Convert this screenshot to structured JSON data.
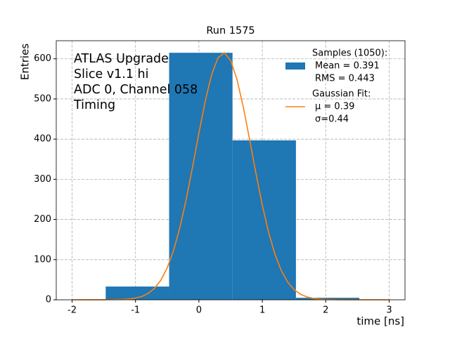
{
  "chart_data": {
    "type": "histogram",
    "title": "Run 1575",
    "xlabel": "time [ns]",
    "ylabel": "Entries",
    "annotation": [
      "ATLAS Upgrade",
      "Slice v1.1 hi",
      "ADC 0, Channel 058",
      "Timing"
    ],
    "xlim": [
      -2.25,
      3.25
    ],
    "ylim": [
      0,
      645
    ],
    "xticks": [
      -2,
      -1,
      0,
      1,
      2,
      3
    ],
    "yticks": [
      0,
      100,
      200,
      300,
      400,
      500,
      600
    ],
    "grid": true,
    "legend": "upper right",
    "series": [
      {
        "type": "histogram",
        "name": "Samples (1050):",
        "legend_lines": [
          "Mean = 0.391",
          "RMS = 0.443"
        ],
        "color": "#1f77b4",
        "bins": [
          -1.47,
          -0.47,
          0.53,
          1.53,
          2.53
        ],
        "values": [
          33,
          615,
          397,
          5
        ]
      },
      {
        "type": "line",
        "name": "Gaussian Fit:",
        "legend_lines": [
          "μ = 0.39",
          "σ=0.44"
        ],
        "color": "#ff7f0e",
        "x": [
          -2,
          -1.5,
          -1.2,
          -1.1,
          -1.0,
          -0.9,
          -0.8,
          -0.7,
          -0.6,
          -0.5,
          -0.4,
          -0.3,
          -0.2,
          -0.1,
          0,
          0.1,
          0.2,
          0.3,
          0.4,
          0.5,
          0.6,
          0.7,
          0.8,
          0.9,
          1.0,
          1.1,
          1.2,
          1.3,
          1.4,
          1.5,
          1.6,
          1.7,
          1.8,
          1.9,
          2.0,
          2.2,
          2.5,
          3
        ],
        "values": [
          0,
          0.1,
          0.9,
          2.0,
          4.2,
          8.3,
          15.9,
          28.6,
          48.9,
          79.5,
          122.7,
          179.8,
          250.3,
          330.8,
          415.2,
          494.9,
          560.3,
          602.3,
          615,
          596.1,
          548.8,
          479.8,
          398.5,
          314.2,
          235.2,
          167.3,
          113.0,
          72.4,
          44.1,
          25.5,
          14.0,
          7.3,
          3.6,
          1.7,
          0.8,
          0.1,
          0,
          0
        ]
      }
    ]
  }
}
